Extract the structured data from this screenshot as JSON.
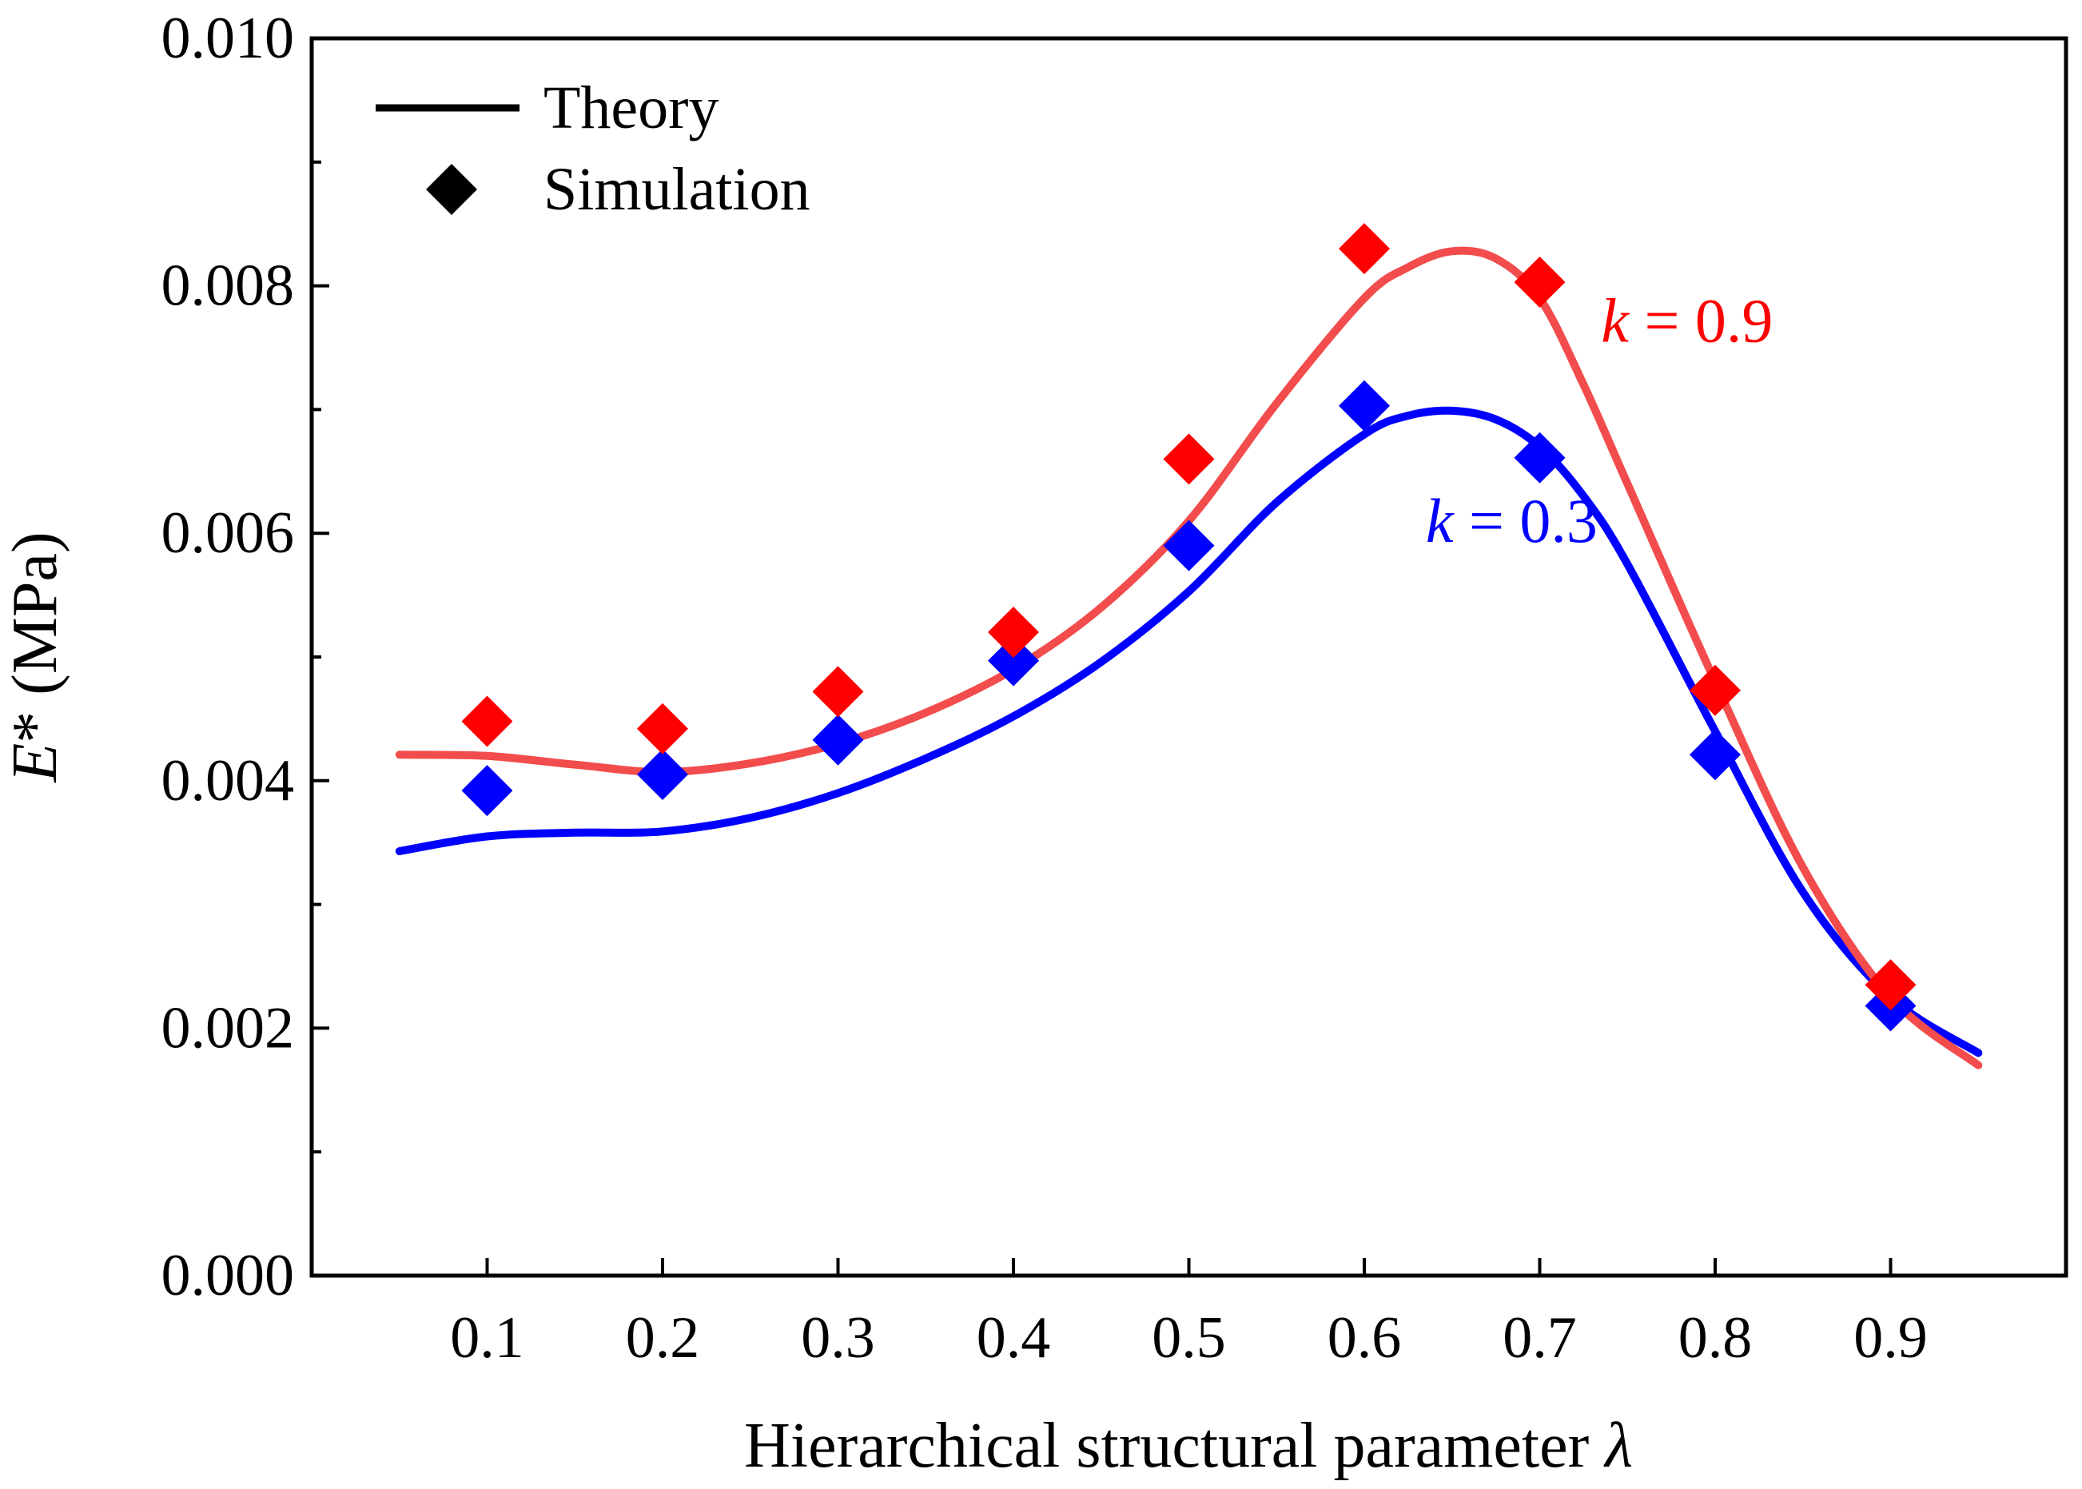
{
  "chart_data": {
    "type": "line",
    "title": "",
    "xlabel": "Hierarchical structural parameter ",
    "xlabel_symbol": "λ",
    "ylabel_symbol": "E",
    "ylabel_rest": "* (MPa)",
    "xlim": [
      0.0,
      1.0
    ],
    "ylim": [
      0.0,
      0.01
    ],
    "x_ticks": [
      0.1,
      0.2,
      0.3,
      0.4,
      0.5,
      0.6,
      0.7,
      0.8,
      0.9
    ],
    "x_tick_labels": [
      "0.1",
      "0.2",
      "0.3",
      "0.4",
      "0.5",
      "0.6",
      "0.7",
      "0.8",
      "0.9"
    ],
    "y_ticks": [
      0.0,
      0.002,
      0.004,
      0.006,
      0.008,
      0.01
    ],
    "y_tick_labels": [
      "0.000",
      "0.002",
      "0.004",
      "0.006",
      "0.008",
      "0.010"
    ],
    "y_minor_ticks": [
      0.001,
      0.003,
      0.005,
      0.007,
      0.009
    ],
    "legend": {
      "position": "top-left",
      "entries": [
        {
          "label": "Theory",
          "marker": "line"
        },
        {
          "label": "Simulation",
          "marker": "diamond"
        }
      ]
    },
    "series": [
      {
        "name": "k = 0.3",
        "color": "#0000ff",
        "theory": {
          "x": [
            0.05,
            0.1,
            0.15,
            0.2,
            0.25,
            0.3,
            0.35,
            0.4,
            0.45,
            0.5,
            0.55,
            0.6,
            0.625,
            0.65,
            0.675,
            0.7,
            0.725,
            0.75,
            0.8,
            0.85,
            0.9,
            0.95
          ],
          "y": [
            0.00343,
            0.00355,
            0.00358,
            0.00359,
            0.0037,
            0.0039,
            0.00418,
            0.00452,
            0.00496,
            0.00553,
            0.00625,
            0.0068,
            0.00695,
            0.00699,
            0.00692,
            0.0067,
            0.0063,
            0.00575,
            0.0044,
            0.0031,
            0.00225,
            0.0018
          ]
        },
        "simulation": {
          "x": [
            0.1,
            0.2,
            0.3,
            0.4,
            0.5,
            0.6,
            0.7,
            0.8,
            0.9
          ],
          "y": [
            0.00392,
            0.00405,
            0.00433,
            0.00497,
            0.0059,
            0.00703,
            0.00661,
            0.00421,
            0.00218
          ]
        }
      },
      {
        "name": "k = 0.9",
        "color": "#ff0000",
        "line_color": "#f24c4c",
        "theory": {
          "x": [
            0.05,
            0.1,
            0.15,
            0.2,
            0.25,
            0.3,
            0.35,
            0.4,
            0.45,
            0.5,
            0.55,
            0.6,
            0.625,
            0.65,
            0.675,
            0.7,
            0.725,
            0.75,
            0.8,
            0.85,
            0.9,
            0.95
          ],
          "y": [
            0.00421,
            0.0042,
            0.00413,
            0.00407,
            0.00414,
            0.0043,
            0.00455,
            0.0049,
            0.0054,
            0.0061,
            0.00705,
            0.0079,
            0.00815,
            0.00828,
            0.00822,
            0.0079,
            0.0072,
            0.0064,
            0.0048,
            0.0033,
            0.00225,
            0.0017
          ]
        },
        "simulation": {
          "x": [
            0.1,
            0.2,
            0.3,
            0.4,
            0.5,
            0.6,
            0.7,
            0.8,
            0.9
          ],
          "y": [
            0.00448,
            0.00442,
            0.00472,
            0.0052,
            0.0066,
            0.0083,
            0.00803,
            0.00473,
            0.00235
          ]
        }
      }
    ],
    "annotations": [
      {
        "italic": "k",
        "rest": " = 0.9",
        "x": 0.735,
        "y": 0.00755,
        "color": "#ff0000"
      },
      {
        "italic": "k",
        "rest": " = 0.3",
        "x": 0.635,
        "y": 0.00593,
        "color": "#0000ff"
      }
    ]
  }
}
